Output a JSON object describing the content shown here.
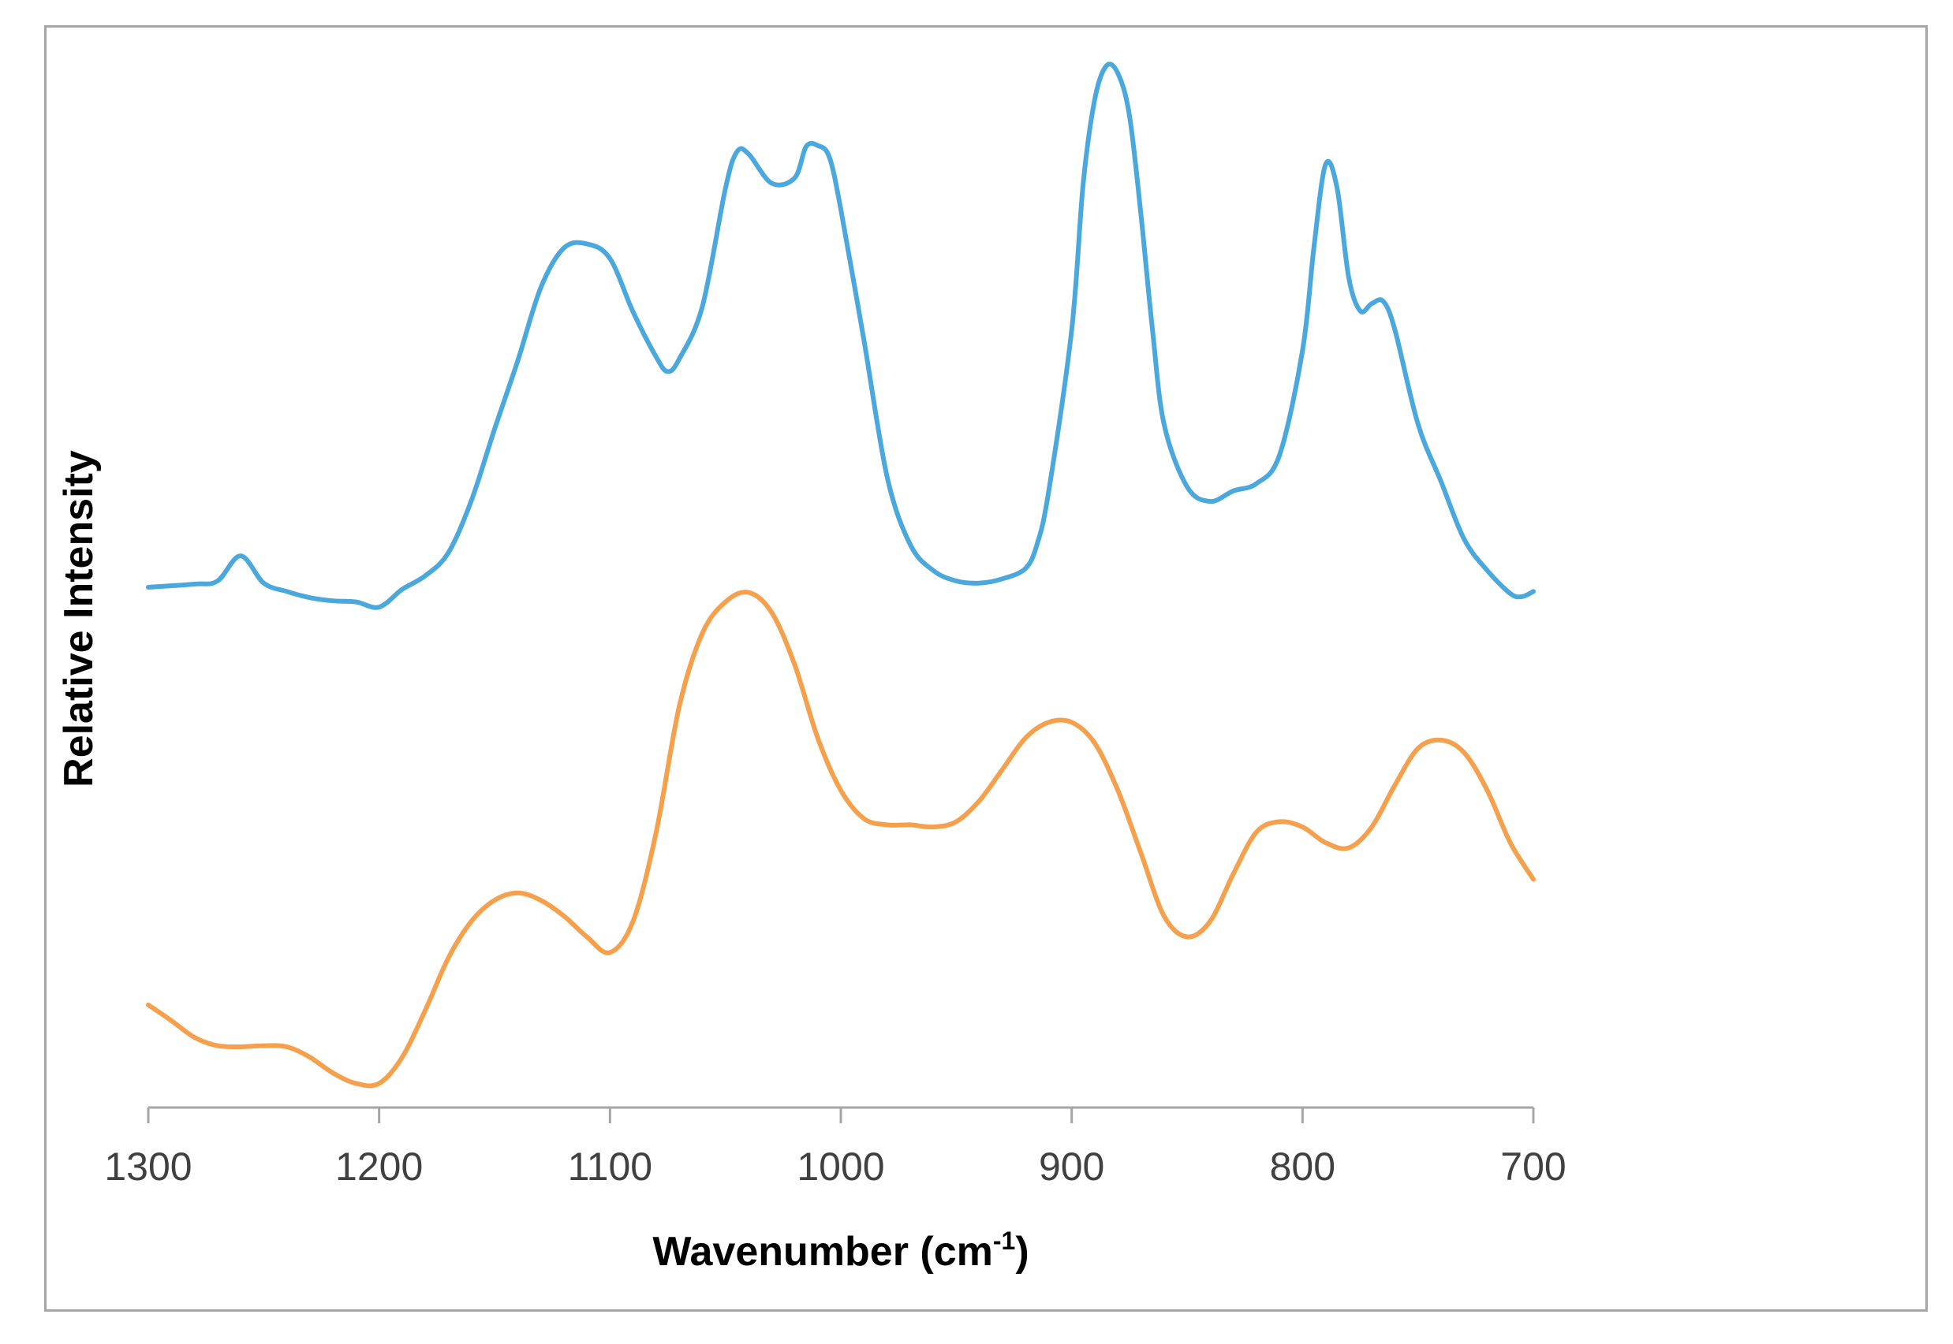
{
  "chart_data": {
    "type": "line",
    "xlabel": "Wavenumber (cm",
    "xlabel_superscript": "-1",
    "xlabel_suffix": ")",
    "ylabel": "Relative Intensity",
    "xlim": [
      1300,
      700
    ],
    "x_reversed": true,
    "ylim": [
      0,
      1
    ],
    "x_ticks": [
      1300,
      1200,
      1100,
      1000,
      900,
      800,
      700
    ],
    "y_ticks_shown": false,
    "grid": false,
    "legend": "none",
    "series": [
      {
        "color": "#4aa8dc",
        "points": [
          [
            1300,
            0.494
          ],
          [
            1280,
            0.497
          ],
          [
            1270,
            0.5
          ],
          [
            1260,
            0.524
          ],
          [
            1250,
            0.498
          ],
          [
            1240,
            0.49
          ],
          [
            1230,
            0.484
          ],
          [
            1220,
            0.481
          ],
          [
            1210,
            0.48
          ],
          [
            1200,
            0.475
          ],
          [
            1190,
            0.492
          ],
          [
            1180,
            0.505
          ],
          [
            1170,
            0.527
          ],
          [
            1160,
            0.577
          ],
          [
            1150,
            0.645
          ],
          [
            1140,
            0.71
          ],
          [
            1130,
            0.78
          ],
          [
            1120,
            0.818
          ],
          [
            1110,
            0.822
          ],
          [
            1100,
            0.808
          ],
          [
            1090,
            0.757
          ],
          [
            1080,
            0.714
          ],
          [
            1075,
            0.7
          ],
          [
            1070,
            0.712
          ],
          [
            1060,
            0.762
          ],
          [
            1050,
            0.875
          ],
          [
            1045,
            0.91
          ],
          [
            1040,
            0.908
          ],
          [
            1030,
            0.88
          ],
          [
            1020,
            0.885
          ],
          [
            1015,
            0.915
          ],
          [
            1010,
            0.916
          ],
          [
            1005,
            0.905
          ],
          [
            1000,
            0.855
          ],
          [
            990,
            0.73
          ],
          [
            980,
            0.6
          ],
          [
            970,
            0.535
          ],
          [
            960,
            0.51
          ],
          [
            950,
            0.5
          ],
          [
            940,
            0.498
          ],
          [
            930,
            0.502
          ],
          [
            920,
            0.512
          ],
          [
            915,
            0.535
          ],
          [
            910,
            0.585
          ],
          [
            900,
            0.74
          ],
          [
            895,
            0.88
          ],
          [
            890,
            0.96
          ],
          [
            885,
            0.992
          ],
          [
            880,
            0.985
          ],
          [
            875,
            0.945
          ],
          [
            870,
            0.85
          ],
          [
            865,
            0.74
          ],
          [
            860,
            0.65
          ],
          [
            850,
            0.59
          ],
          [
            840,
            0.576
          ],
          [
            830,
            0.586
          ],
          [
            820,
            0.593
          ],
          [
            810,
            0.62
          ],
          [
            800,
            0.72
          ],
          [
            795,
            0.82
          ],
          [
            790,
            0.898
          ],
          [
            785,
            0.875
          ],
          [
            780,
            0.79
          ],
          [
            775,
            0.758
          ],
          [
            770,
            0.765
          ],
          [
            765,
            0.767
          ],
          [
            760,
            0.74
          ],
          [
            750,
            0.65
          ],
          [
            740,
            0.595
          ],
          [
            730,
            0.54
          ],
          [
            720,
            0.51
          ],
          [
            710,
            0.488
          ],
          [
            705,
            0.485
          ],
          [
            700,
            0.49
          ]
        ]
      },
      {
        "color": "#f5a04d",
        "points": [
          [
            1300,
            0.095
          ],
          [
            1290,
            0.08
          ],
          [
            1280,
            0.064
          ],
          [
            1270,
            0.056
          ],
          [
            1260,
            0.055
          ],
          [
            1250,
            0.056
          ],
          [
            1240,
            0.055
          ],
          [
            1230,
            0.045
          ],
          [
            1220,
            0.03
          ],
          [
            1210,
            0.02
          ],
          [
            1200,
            0.02
          ],
          [
            1190,
            0.045
          ],
          [
            1180,
            0.09
          ],
          [
            1170,
            0.14
          ],
          [
            1160,
            0.175
          ],
          [
            1150,
            0.195
          ],
          [
            1140,
            0.202
          ],
          [
            1130,
            0.195
          ],
          [
            1120,
            0.18
          ],
          [
            1110,
            0.16
          ],
          [
            1100,
            0.145
          ],
          [
            1090,
            0.175
          ],
          [
            1080,
            0.26
          ],
          [
            1070,
            0.38
          ],
          [
            1060,
            0.45
          ],
          [
            1050,
            0.48
          ],
          [
            1040,
            0.489
          ],
          [
            1030,
            0.47
          ],
          [
            1020,
            0.42
          ],
          [
            1010,
            0.35
          ],
          [
            1000,
            0.3
          ],
          [
            990,
            0.273
          ],
          [
            980,
            0.267
          ],
          [
            970,
            0.267
          ],
          [
            960,
            0.265
          ],
          [
            950,
            0.27
          ],
          [
            940,
            0.29
          ],
          [
            930,
            0.32
          ],
          [
            920,
            0.35
          ],
          [
            910,
            0.365
          ],
          [
            900,
            0.365
          ],
          [
            890,
            0.345
          ],
          [
            880,
            0.3
          ],
          [
            870,
            0.24
          ],
          [
            860,
            0.18
          ],
          [
            850,
            0.16
          ],
          [
            840,
            0.175
          ],
          [
            830,
            0.22
          ],
          [
            820,
            0.26
          ],
          [
            810,
            0.27
          ],
          [
            800,
            0.265
          ],
          [
            790,
            0.25
          ],
          [
            780,
            0.245
          ],
          [
            770,
            0.265
          ],
          [
            760,
            0.305
          ],
          [
            750,
            0.34
          ],
          [
            740,
            0.348
          ],
          [
            730,
            0.336
          ],
          [
            720,
            0.3
          ],
          [
            710,
            0.25
          ],
          [
            700,
            0.215
          ]
        ]
      }
    ]
  }
}
